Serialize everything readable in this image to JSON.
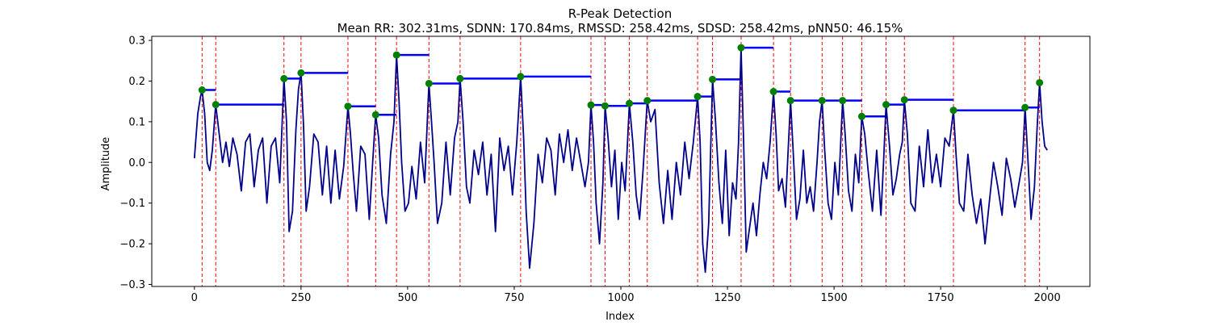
{
  "chart_data": {
    "type": "line",
    "title": "R-Peak Detection",
    "subtitle": "Mean RR: 302.31ms, SDNN: 170.84ms, RMSSD: 258.42ms, SDSD: 258.42ms, pNN50: 46.15%",
    "xlabel": "Index",
    "ylabel": "Amplitude",
    "xlim": [
      -100,
      2100
    ],
    "ylim": [
      -0.305,
      0.31
    ],
    "xticks": [
      0,
      250,
      500,
      750,
      1000,
      1250,
      1500,
      1750,
      2000
    ],
    "yticks": [
      -0.3,
      -0.2,
      -0.1,
      0.0,
      0.1,
      0.2,
      0.3
    ],
    "xtick_labels": [
      "0",
      "250",
      "500",
      "750",
      "1000",
      "1250",
      "1500",
      "1750",
      "2000"
    ],
    "ytick_labels": [
      "−0.3",
      "−0.2",
      "−0.1",
      "0.0",
      "0.1",
      "0.2",
      "0.3"
    ],
    "grid": false,
    "colors": {
      "signal": "#00008b",
      "peak_line": "#ff0000",
      "peak_marker": "#008000",
      "rr_segment": "#0000ff"
    },
    "peaks": [
      {
        "x": 18,
        "y": 0.178
      },
      {
        "x": 50,
        "y": 0.142
      },
      {
        "x": 210,
        "y": 0.206
      },
      {
        "x": 250,
        "y": 0.22
      },
      {
        "x": 360,
        "y": 0.138
      },
      {
        "x": 425,
        "y": 0.117
      },
      {
        "x": 474,
        "y": 0.264
      },
      {
        "x": 550,
        "y": 0.194
      },
      {
        "x": 623,
        "y": 0.206
      },
      {
        "x": 765,
        "y": 0.211
      },
      {
        "x": 930,
        "y": 0.141
      },
      {
        "x": 963,
        "y": 0.139
      },
      {
        "x": 1020,
        "y": 0.145
      },
      {
        "x": 1062,
        "y": 0.152
      },
      {
        "x": 1180,
        "y": 0.162
      },
      {
        "x": 1215,
        "y": 0.204
      },
      {
        "x": 1282,
        "y": 0.282
      },
      {
        "x": 1358,
        "y": 0.174
      },
      {
        "x": 1398,
        "y": 0.152
      },
      {
        "x": 1472,
        "y": 0.152
      },
      {
        "x": 1520,
        "y": 0.152
      },
      {
        "x": 1565,
        "y": 0.113
      },
      {
        "x": 1622,
        "y": 0.142
      },
      {
        "x": 1665,
        "y": 0.154
      },
      {
        "x": 1780,
        "y": 0.128
      },
      {
        "x": 1948,
        "y": 0.135
      },
      {
        "x": 1982,
        "y": 0.196
      }
    ],
    "rr_segments": [
      {
        "x0": 18,
        "x1": 50,
        "y": 0.178
      },
      {
        "x0": 50,
        "x1": 210,
        "y": 0.142
      },
      {
        "x0": 210,
        "x1": 250,
        "y": 0.206
      },
      {
        "x0": 250,
        "x1": 360,
        "y": 0.22
      },
      {
        "x0": 360,
        "x1": 425,
        "y": 0.138
      },
      {
        "x0": 425,
        "x1": 474,
        "y": 0.117
      },
      {
        "x0": 474,
        "x1": 550,
        "y": 0.264
      },
      {
        "x0": 550,
        "x1": 623,
        "y": 0.194
      },
      {
        "x0": 623,
        "x1": 765,
        "y": 0.206
      },
      {
        "x0": 765,
        "x1": 930,
        "y": 0.211
      },
      {
        "x0": 930,
        "x1": 963,
        "y": 0.141
      },
      {
        "x0": 963,
        "x1": 1020,
        "y": 0.139
      },
      {
        "x0": 1020,
        "x1": 1062,
        "y": 0.145
      },
      {
        "x0": 1062,
        "x1": 1180,
        "y": 0.152
      },
      {
        "x0": 1180,
        "x1": 1215,
        "y": 0.162
      },
      {
        "x0": 1215,
        "x1": 1282,
        "y": 0.204
      },
      {
        "x0": 1282,
        "x1": 1358,
        "y": 0.282
      },
      {
        "x0": 1358,
        "x1": 1398,
        "y": 0.174
      },
      {
        "x0": 1398,
        "x1": 1472,
        "y": 0.152
      },
      {
        "x0": 1472,
        "x1": 1520,
        "y": 0.152
      },
      {
        "x0": 1520,
        "x1": 1565,
        "y": 0.152
      },
      {
        "x0": 1565,
        "x1": 1622,
        "y": 0.113
      },
      {
        "x0": 1622,
        "x1": 1665,
        "y": 0.142
      },
      {
        "x0": 1665,
        "x1": 1780,
        "y": 0.154
      },
      {
        "x0": 1780,
        "x1": 1948,
        "y": 0.128
      },
      {
        "x0": 1948,
        "x1": 1982,
        "y": 0.135
      }
    ],
    "signal": {
      "x": [
        0,
        8,
        14,
        18,
        24,
        30,
        36,
        42,
        50,
        58,
        66,
        74,
        82,
        90,
        100,
        110,
        120,
        130,
        140,
        150,
        160,
        170,
        180,
        190,
        200,
        210,
        216,
        222,
        230,
        238,
        244,
        250,
        256,
        262,
        270,
        280,
        290,
        300,
        310,
        320,
        330,
        340,
        350,
        360,
        366,
        372,
        380,
        390,
        400,
        410,
        418,
        425,
        432,
        440,
        450,
        460,
        468,
        474,
        480,
        486,
        494,
        502,
        510,
        520,
        530,
        540,
        550,
        556,
        562,
        570,
        580,
        590,
        600,
        610,
        618,
        623,
        630,
        638,
        646,
        656,
        666,
        676,
        686,
        696,
        706,
        716,
        726,
        736,
        746,
        756,
        765,
        772,
        778,
        786,
        796,
        806,
        816,
        826,
        836,
        846,
        856,
        866,
        876,
        886,
        896,
        906,
        916,
        924,
        930,
        936,
        942,
        950,
        958,
        963,
        970,
        978,
        986,
        994,
        1002,
        1010,
        1020,
        1028,
        1036,
        1044,
        1052,
        1062,
        1070,
        1080,
        1090,
        1100,
        1110,
        1120,
        1130,
        1140,
        1150,
        1160,
        1170,
        1180,
        1186,
        1192,
        1198,
        1206,
        1215,
        1222,
        1230,
        1238,
        1246,
        1254,
        1262,
        1270,
        1276,
        1282,
        1288,
        1294,
        1302,
        1310,
        1318,
        1326,
        1334,
        1342,
        1350,
        1358,
        1364,
        1370,
        1378,
        1386,
        1392,
        1398,
        1404,
        1412,
        1420,
        1428,
        1436,
        1444,
        1452,
        1460,
        1466,
        1472,
        1478,
        1486,
        1494,
        1502,
        1510,
        1520,
        1526,
        1534,
        1542,
        1550,
        1558,
        1565,
        1572,
        1580,
        1590,
        1600,
        1610,
        1616,
        1622,
        1630,
        1638,
        1646,
        1654,
        1660,
        1665,
        1672,
        1680,
        1690,
        1700,
        1710,
        1720,
        1730,
        1740,
        1750,
        1760,
        1770,
        1780,
        1786,
        1794,
        1804,
        1814,
        1824,
        1834,
        1844,
        1854,
        1864,
        1874,
        1884,
        1894,
        1904,
        1914,
        1924,
        1934,
        1942,
        1948,
        1954,
        1962,
        1970,
        1976,
        1982,
        1988,
        1994,
        2000
      ],
      "y": [
        0.01,
        0.12,
        0.16,
        0.178,
        0.12,
        0.0,
        -0.02,
        0.03,
        0.142,
        0.07,
        0.0,
        0.05,
        -0.01,
        0.06,
        0.02,
        -0.07,
        0.05,
        0.07,
        -0.06,
        0.03,
        0.06,
        -0.1,
        0.04,
        0.06,
        -0.05,
        0.206,
        0.1,
        -0.17,
        -0.12,
        0.08,
        0.18,
        0.22,
        0.09,
        -0.12,
        -0.06,
        0.07,
        0.05,
        -0.08,
        0.04,
        -0.1,
        0.03,
        -0.09,
        -0.01,
        0.138,
        0.07,
        -0.02,
        -0.12,
        0.04,
        0.02,
        -0.14,
        0.0,
        0.117,
        0.06,
        -0.08,
        -0.15,
        0.02,
        0.1,
        0.264,
        0.15,
        0.0,
        -0.12,
        -0.1,
        -0.01,
        -0.09,
        0.05,
        -0.05,
        0.194,
        0.1,
        0.0,
        -0.15,
        -0.1,
        0.05,
        -0.08,
        0.06,
        0.1,
        0.206,
        0.1,
        -0.06,
        -0.1,
        0.03,
        -0.03,
        0.05,
        -0.08,
        0.02,
        -0.17,
        0.06,
        -0.02,
        0.04,
        -0.08,
        0.05,
        0.211,
        0.06,
        -0.12,
        -0.26,
        -0.15,
        0.02,
        -0.05,
        0.06,
        0.03,
        -0.08,
        0.07,
        0.0,
        0.08,
        -0.02,
        0.06,
        0.0,
        -0.06,
        0.0,
        0.141,
        0.05,
        -0.1,
        -0.2,
        -0.05,
        0.139,
        0.06,
        -0.06,
        0.03,
        -0.14,
        0.0,
        -0.07,
        0.145,
        0.05,
        -0.08,
        -0.14,
        -0.02,
        0.152,
        0.1,
        0.13,
        -0.05,
        -0.15,
        -0.02,
        -0.14,
        0.0,
        -0.08,
        0.05,
        -0.04,
        0.05,
        0.162,
        0.05,
        -0.2,
        -0.27,
        -0.15,
        0.204,
        0.1,
        -0.05,
        -0.15,
        0.03,
        -0.18,
        -0.05,
        -0.09,
        0.05,
        0.282,
        0.05,
        -0.22,
        -0.16,
        -0.1,
        -0.18,
        -0.08,
        0.0,
        -0.04,
        0.05,
        0.174,
        0.07,
        -0.07,
        -0.04,
        -0.11,
        0.02,
        0.152,
        0.03,
        -0.14,
        -0.09,
        0.03,
        -0.1,
        -0.06,
        -0.12,
        0.0,
        0.1,
        0.152,
        0.03,
        -0.1,
        -0.14,
        0.0,
        -0.08,
        0.152,
        0.07,
        -0.07,
        -0.12,
        0.02,
        -0.05,
        0.113,
        0.07,
        -0.02,
        -0.12,
        0.03,
        -0.13,
        0.0,
        0.142,
        0.04,
        -0.08,
        -0.04,
        0.02,
        0.05,
        0.154,
        0.07,
        -0.1,
        -0.12,
        0.04,
        -0.06,
        0.08,
        -0.05,
        0.02,
        -0.06,
        0.06,
        0.04,
        0.128,
        0.02,
        -0.1,
        -0.12,
        0.02,
        -0.08,
        -0.15,
        -0.09,
        -0.2,
        -0.1,
        0.0,
        -0.06,
        -0.13,
        0.01,
        -0.04,
        -0.11,
        -0.05,
        0.0,
        0.135,
        0.02,
        -0.14,
        -0.06,
        0.08,
        0.196,
        0.1,
        0.04,
        0.03
      ]
    }
  }
}
